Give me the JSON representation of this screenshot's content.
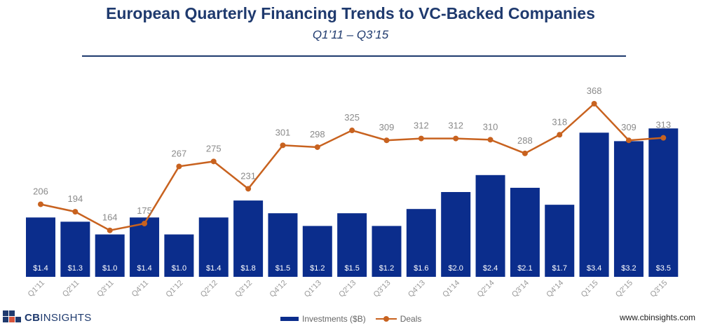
{
  "header": {
    "title": "European Quarterly Financing Trends to VC-Backed Companies",
    "subtitle": "Q1’11 – Q3’15"
  },
  "footer": {
    "brand_cb": "CB",
    "brand_insights": "INSIGHTS",
    "url": "www.cbinsights.com"
  },
  "colors": {
    "bar": "#0b2d8c",
    "line": "#c8621f",
    "title": "#1f3a6e"
  },
  "chart_data": {
    "type": "bar",
    "categories": [
      "Q1'11",
      "Q2'11",
      "Q3'11",
      "Q4'11",
      "Q1'12",
      "Q2'12",
      "Q3'12",
      "Q4'12",
      "Q1'13",
      "Q2'13",
      "Q3'13",
      "Q4'13",
      "Q1'14",
      "Q2'14",
      "Q3'14",
      "Q4'14",
      "Q1'15",
      "Q2'15",
      "Q3'15"
    ],
    "series": [
      {
        "name": "Investments ($B)",
        "type": "bar",
        "values": [
          1.4,
          1.3,
          1.0,
          1.4,
          1.0,
          1.4,
          1.8,
          1.5,
          1.2,
          1.5,
          1.2,
          1.6,
          2.0,
          2.4,
          2.1,
          1.7,
          3.4,
          3.2,
          3.5
        ],
        "labels": [
          "$1.4",
          "$1.3",
          "$1.0",
          "$1.4",
          "$1.0",
          "$1.4",
          "$1.8",
          "$1.5",
          "$1.2",
          "$1.5",
          "$1.2",
          "$1.6",
          "$2.0",
          "$2.4",
          "$2.1",
          "$1.7",
          "$3.4",
          "$3.2",
          "$3.5"
        ]
      },
      {
        "name": "Deals",
        "type": "line",
        "values": [
          206,
          194,
          164,
          175,
          267,
          275,
          231,
          301,
          298,
          325,
          309,
          312,
          312,
          310,
          288,
          318,
          368,
          309,
          313
        ]
      }
    ],
    "legend": "bottom-center",
    "grid": false
  }
}
